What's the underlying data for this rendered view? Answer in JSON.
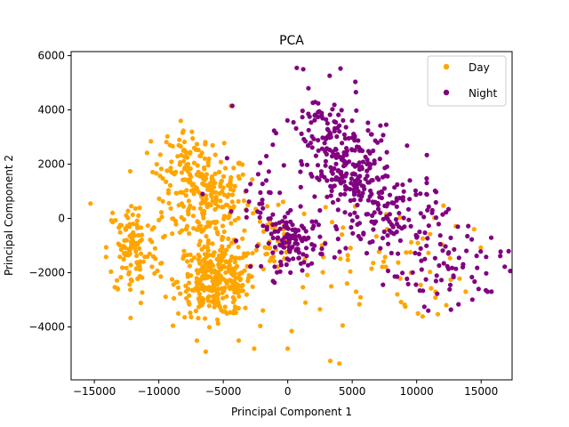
{
  "chart_data": {
    "type": "scatter",
    "title": "PCA",
    "xlabel": "Principal Component 1",
    "ylabel": "Principal Component 2",
    "xlim": [
      -16800,
      17400
    ],
    "ylim": [
      -5950,
      6150
    ],
    "xticks": [
      -15000,
      -10000,
      -5000,
      0,
      5000,
      10000,
      15000
    ],
    "yticks": [
      -4000,
      -2000,
      0,
      2000,
      4000,
      6000
    ],
    "legend_position": "top-right",
    "series": [
      {
        "name": "Day",
        "color": "#FFA500",
        "clusters": [
          {
            "center": [
              -6300,
              700
            ],
            "spread": [
              1700,
              900
            ],
            "count": 230
          },
          {
            "center": [
              -5500,
              -2300
            ],
            "spread": [
              1500,
              650
            ],
            "count": 320
          },
          {
            "center": [
              -12000,
              -1100
            ],
            "spread": [
              1000,
              900
            ],
            "count": 120
          },
          {
            "center": [
              -8000,
              2300
            ],
            "spread": [
              1000,
              500
            ],
            "count": 60
          },
          {
            "center": [
              -1500,
              -900
            ],
            "spread": [
              1200,
              600
            ],
            "count": 30
          },
          {
            "center": [
              6000,
              -1500
            ],
            "spread": [
              3800,
              1100
            ],
            "count": 70
          }
        ],
        "points": [
          [
            -15300,
            550
          ],
          [
            -8300,
            3600
          ],
          [
            -4400,
            4150
          ],
          [
            -3800,
            -4500
          ],
          [
            -2600,
            -4800
          ],
          [
            0,
            -4800
          ],
          [
            300,
            -4150
          ],
          [
            3300,
            -5250
          ],
          [
            4000,
            -5350
          ],
          [
            2500,
            -3350
          ],
          [
            4600,
            -2400
          ],
          [
            5300,
            -2700
          ],
          [
            8500,
            -2800
          ],
          [
            12300,
            -3200
          ],
          [
            13800,
            -2700
          ]
        ]
      },
      {
        "name": "Night",
        "color": "#800080",
        "clusters": [
          {
            "center": [
              4800,
              1600
            ],
            "spread": [
              1700,
              900
            ],
            "count": 210
          },
          {
            "center": [
              500,
              -900
            ],
            "spread": [
              1200,
              500
            ],
            "count": 120
          },
          {
            "center": [
              8500,
              0
            ],
            "spread": [
              2000,
              900
            ],
            "count": 110
          },
          {
            "center": [
              2800,
              3200
            ],
            "spread": [
              1500,
              800
            ],
            "count": 70
          },
          {
            "center": [
              12500,
              -1800
            ],
            "spread": [
              2100,
              700
            ],
            "count": 60
          },
          {
            "center": [
              -2000,
              1200
            ],
            "spread": [
              900,
              800
            ],
            "count": 25
          }
        ],
        "points": [
          [
            700,
            5550
          ],
          [
            1200,
            5500
          ],
          [
            1600,
            4800
          ],
          [
            -4300,
            4150
          ],
          [
            -6600,
            900
          ],
          [
            15800,
            -2700
          ],
          [
            15500,
            -2700
          ],
          [
            14800,
            -2600
          ],
          [
            -3200,
            300
          ],
          [
            10900,
            -3400
          ]
        ]
      }
    ]
  }
}
